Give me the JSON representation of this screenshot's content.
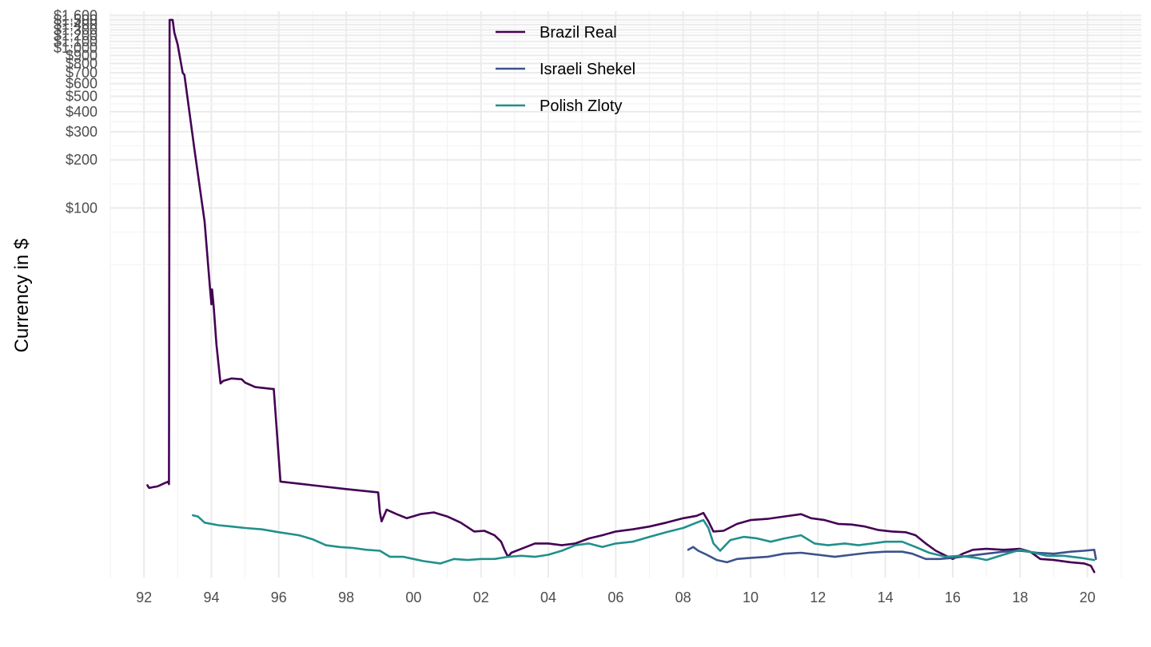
{
  "chart_data": {
    "type": "line",
    "title": "",
    "xlabel": "",
    "ylabel": "Currency in $",
    "x_scale": "date",
    "y_scale": "log",
    "xlim": [
      1991.0,
      2021.6
    ],
    "ylim": [
      0.49,
      1700
    ],
    "x_ticks": [
      {
        "value": 1992,
        "label": "92"
      },
      {
        "value": 1994,
        "label": "94"
      },
      {
        "value": 1996,
        "label": "96"
      },
      {
        "value": 1998,
        "label": "98"
      },
      {
        "value": 2000,
        "label": "00"
      },
      {
        "value": 2002,
        "label": "02"
      },
      {
        "value": 2004,
        "label": "04"
      },
      {
        "value": 2006,
        "label": "06"
      },
      {
        "value": 2008,
        "label": "08"
      },
      {
        "value": 2010,
        "label": "10"
      },
      {
        "value": 2012,
        "label": "12"
      },
      {
        "value": 2014,
        "label": "14"
      },
      {
        "value": 2016,
        "label": "16"
      },
      {
        "value": 2018,
        "label": "18"
      },
      {
        "value": 2020,
        "label": "20"
      }
    ],
    "y_ticks": [
      {
        "value": 100,
        "label": "$100"
      },
      {
        "value": 200,
        "label": "$200"
      },
      {
        "value": 300,
        "label": "$300"
      },
      {
        "value": 400,
        "label": "$400"
      },
      {
        "value": 500,
        "label": "$500"
      },
      {
        "value": 600,
        "label": "$600"
      },
      {
        "value": 700,
        "label": "$700"
      },
      {
        "value": 800,
        "label": "$800"
      },
      {
        "value": 900,
        "label": "$900"
      },
      {
        "value": 1000,
        "label": "$1,000"
      },
      {
        "value": 1100,
        "label": "$1,100"
      },
      {
        "value": 1200,
        "label": "$1,200"
      },
      {
        "value": 1300,
        "label": "$1,300"
      },
      {
        "value": 1400,
        "label": "$1,400"
      },
      {
        "value": 1500,
        "label": "$1,500"
      },
      {
        "value": 1600,
        "label": "$1,600"
      }
    ],
    "grid": true,
    "legend_position": "top-center",
    "series": [
      {
        "name": "Brazil Real",
        "color": "#440154",
        "points": [
          [
            1992.1,
            1.85
          ],
          [
            1992.15,
            1.78
          ],
          [
            1992.4,
            1.82
          ],
          [
            1992.6,
            1.9
          ],
          [
            1992.72,
            1.95
          ],
          [
            1992.74,
            1.88
          ],
          [
            1992.76,
            1500
          ],
          [
            1992.85,
            1500
          ],
          [
            1992.9,
            1250
          ],
          [
            1993.0,
            1050
          ],
          [
            1993.1,
            800
          ],
          [
            1993.15,
            700
          ],
          [
            1993.2,
            680
          ],
          [
            1993.5,
            230
          ],
          [
            1993.8,
            82
          ],
          [
            1993.95,
            33
          ],
          [
            1994.0,
            25
          ],
          [
            1994.02,
            31
          ],
          [
            1994.07,
            24
          ],
          [
            1994.15,
            14
          ],
          [
            1994.27,
            8.0
          ],
          [
            1994.35,
            8.3
          ],
          [
            1994.6,
            8.6
          ],
          [
            1994.9,
            8.5
          ],
          [
            1995.0,
            8.1
          ],
          [
            1995.3,
            7.6
          ],
          [
            1995.8,
            7.4
          ],
          [
            1995.85,
            7.4
          ],
          [
            1996.05,
            1.95
          ],
          [
            1997.0,
            1.85
          ],
          [
            1998.0,
            1.75
          ],
          [
            1998.95,
            1.67
          ],
          [
            1999.0,
            1.25
          ],
          [
            1999.05,
            1.1
          ],
          [
            1999.2,
            1.3
          ],
          [
            1999.5,
            1.22
          ],
          [
            1999.8,
            1.15
          ],
          [
            2000.2,
            1.22
          ],
          [
            2000.6,
            1.25
          ],
          [
            2001.0,
            1.18
          ],
          [
            2001.4,
            1.08
          ],
          [
            2001.8,
            0.95
          ],
          [
            2002.1,
            0.96
          ],
          [
            2002.4,
            0.9
          ],
          [
            2002.6,
            0.82
          ],
          [
            2002.7,
            0.73
          ],
          [
            2002.8,
            0.66
          ],
          [
            2002.9,
            0.7
          ],
          [
            2003.2,
            0.74
          ],
          [
            2003.6,
            0.8
          ],
          [
            2004.0,
            0.8
          ],
          [
            2004.4,
            0.78
          ],
          [
            2004.8,
            0.8
          ],
          [
            2005.2,
            0.86
          ],
          [
            2005.6,
            0.9
          ],
          [
            2006.0,
            0.95
          ],
          [
            2006.5,
            0.98
          ],
          [
            2007.0,
            1.02
          ],
          [
            2007.5,
            1.08
          ],
          [
            2008.0,
            1.15
          ],
          [
            2008.4,
            1.19
          ],
          [
            2008.6,
            1.24
          ],
          [
            2008.75,
            1.1
          ],
          [
            2008.9,
            0.95
          ],
          [
            2009.2,
            0.96
          ],
          [
            2009.6,
            1.06
          ],
          [
            2010.0,
            1.12
          ],
          [
            2010.5,
            1.14
          ],
          [
            2011.0,
            1.18
          ],
          [
            2011.5,
            1.22
          ],
          [
            2011.8,
            1.15
          ],
          [
            2012.2,
            1.12
          ],
          [
            2012.6,
            1.06
          ],
          [
            2013.0,
            1.05
          ],
          [
            2013.4,
            1.02
          ],
          [
            2013.8,
            0.97
          ],
          [
            2014.2,
            0.95
          ],
          [
            2014.6,
            0.94
          ],
          [
            2014.9,
            0.9
          ],
          [
            2015.2,
            0.8
          ],
          [
            2015.5,
            0.72
          ],
          [
            2015.8,
            0.67
          ],
          [
            2016.0,
            0.64
          ],
          [
            2016.3,
            0.69
          ],
          [
            2016.6,
            0.73
          ],
          [
            2017.0,
            0.74
          ],
          [
            2017.5,
            0.73
          ],
          [
            2018.0,
            0.74
          ],
          [
            2018.3,
            0.71
          ],
          [
            2018.6,
            0.64
          ],
          [
            2019.0,
            0.63
          ],
          [
            2019.5,
            0.61
          ],
          [
            2019.9,
            0.6
          ],
          [
            2020.1,
            0.58
          ],
          [
            2020.2,
            0.53
          ]
        ]
      },
      {
        "name": "Israeli Shekel",
        "color": "#3b528b",
        "points": [
          [
            2008.15,
            0.73
          ],
          [
            2008.3,
            0.76
          ],
          [
            2008.45,
            0.72
          ],
          [
            2008.7,
            0.68
          ],
          [
            2009.0,
            0.63
          ],
          [
            2009.3,
            0.61
          ],
          [
            2009.6,
            0.64
          ],
          [
            2010.0,
            0.65
          ],
          [
            2010.5,
            0.66
          ],
          [
            2011.0,
            0.69
          ],
          [
            2011.5,
            0.7
          ],
          [
            2012.0,
            0.68
          ],
          [
            2012.5,
            0.66
          ],
          [
            2013.0,
            0.68
          ],
          [
            2013.5,
            0.7
          ],
          [
            2014.0,
            0.71
          ],
          [
            2014.5,
            0.71
          ],
          [
            2014.8,
            0.69
          ],
          [
            2015.2,
            0.64
          ],
          [
            2015.6,
            0.64
          ],
          [
            2016.0,
            0.65
          ],
          [
            2016.5,
            0.67
          ],
          [
            2017.0,
            0.69
          ],
          [
            2017.5,
            0.71
          ],
          [
            2018.0,
            0.72
          ],
          [
            2018.5,
            0.7
          ],
          [
            2019.0,
            0.69
          ],
          [
            2019.5,
            0.71
          ],
          [
            2019.9,
            0.72
          ],
          [
            2020.2,
            0.73
          ],
          [
            2020.25,
            0.64
          ]
        ]
      },
      {
        "name": "Polish Zloty",
        "color": "#21908c",
        "points": [
          [
            1993.45,
            1.2
          ],
          [
            1993.6,
            1.18
          ],
          [
            1993.8,
            1.08
          ],
          [
            1994.2,
            1.04
          ],
          [
            1994.6,
            1.02
          ],
          [
            1995.0,
            1.0
          ],
          [
            1995.5,
            0.98
          ],
          [
            1996.0,
            0.94
          ],
          [
            1996.6,
            0.9
          ],
          [
            1997.0,
            0.85
          ],
          [
            1997.4,
            0.78
          ],
          [
            1997.8,
            0.76
          ],
          [
            1998.2,
            0.75
          ],
          [
            1998.6,
            0.73
          ],
          [
            1999.0,
            0.72
          ],
          [
            1999.3,
            0.66
          ],
          [
            1999.7,
            0.66
          ],
          [
            2000.0,
            0.64
          ],
          [
            2000.3,
            0.62
          ],
          [
            2000.8,
            0.6
          ],
          [
            2001.2,
            0.64
          ],
          [
            2001.6,
            0.63
          ],
          [
            2002.0,
            0.64
          ],
          [
            2002.4,
            0.64
          ],
          [
            2002.8,
            0.66
          ],
          [
            2003.2,
            0.67
          ],
          [
            2003.6,
            0.66
          ],
          [
            2004.0,
            0.68
          ],
          [
            2004.4,
            0.72
          ],
          [
            2004.8,
            0.78
          ],
          [
            2005.2,
            0.8
          ],
          [
            2005.6,
            0.76
          ],
          [
            2006.0,
            0.8
          ],
          [
            2006.5,
            0.82
          ],
          [
            2007.0,
            0.88
          ],
          [
            2007.5,
            0.94
          ],
          [
            2008.0,
            1.0
          ],
          [
            2008.4,
            1.08
          ],
          [
            2008.6,
            1.12
          ],
          [
            2008.75,
            1.0
          ],
          [
            2008.9,
            0.8
          ],
          [
            2009.1,
            0.72
          ],
          [
            2009.4,
            0.84
          ],
          [
            2009.8,
            0.88
          ],
          [
            2010.2,
            0.86
          ],
          [
            2010.6,
            0.82
          ],
          [
            2011.0,
            0.86
          ],
          [
            2011.5,
            0.9
          ],
          [
            2011.9,
            0.8
          ],
          [
            2012.3,
            0.78
          ],
          [
            2012.8,
            0.8
          ],
          [
            2013.2,
            0.78
          ],
          [
            2013.6,
            0.8
          ],
          [
            2014.0,
            0.82
          ],
          [
            2014.5,
            0.82
          ],
          [
            2014.9,
            0.76
          ],
          [
            2015.3,
            0.7
          ],
          [
            2015.8,
            0.66
          ],
          [
            2016.2,
            0.67
          ],
          [
            2016.7,
            0.65
          ],
          [
            2017.0,
            0.63
          ],
          [
            2017.5,
            0.68
          ],
          [
            2018.0,
            0.73
          ],
          [
            2018.4,
            0.7
          ],
          [
            2018.8,
            0.67
          ],
          [
            2019.3,
            0.67
          ],
          [
            2019.8,
            0.65
          ],
          [
            2020.2,
            0.63
          ]
        ]
      }
    ]
  }
}
